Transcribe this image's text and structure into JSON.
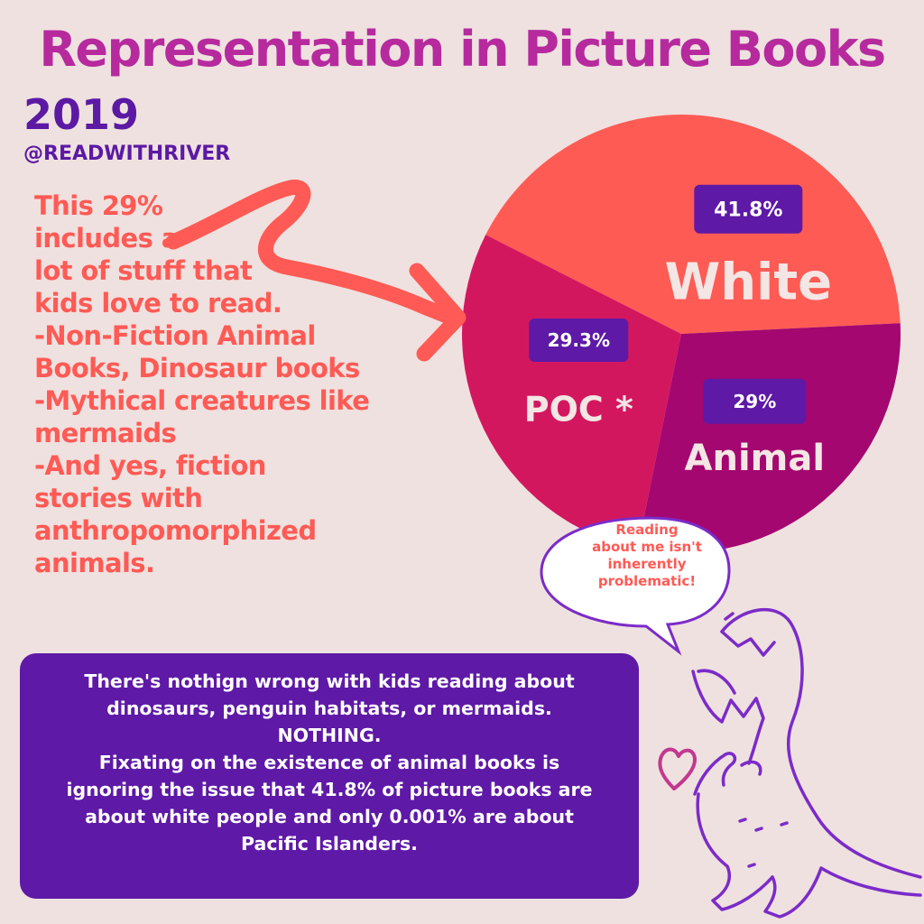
{
  "title": "Representation in Picture Books",
  "year": "2019",
  "handle": "@READWITHRIVER",
  "colors": {
    "background": "#efe1df",
    "title": "#b62a9e",
    "year": "#5b19a4",
    "note_text": "#ff5a55",
    "callout_bg": "#5e19a6",
    "label_box": "#5e19a6",
    "dino": "#7b2bc9",
    "heart": "#c2388f"
  },
  "note_lines": [
    "This 29%",
    "includes a",
    "lot of stuff that",
    "kids love to read.",
    "-Non-Fiction Animal",
    "Books, Dinosaur books",
    "-Mythical creatures like",
    "mermaids",
    "-And yes, fiction",
    "stories with",
    "anthropomorphized",
    "animals."
  ],
  "callout_lines": [
    "There's nothign wrong with kids reading about",
    "dinosaurs, penguin habitats, or mermaids.",
    "NOTHING.",
    "Fixating on the existence of animal books is",
    "ignoring the issue that 41.8% of picture books are",
    "about white people and only 0.001% are about",
    "Pacific Islanders."
  ],
  "speech_lines": [
    "Reading",
    "about me isn't",
    "inherently",
    "problematic!"
  ],
  "icons": {
    "arrow": "squiggle-arrow-icon",
    "dinosaur": "dinosaur-icon",
    "heart": "heart-icon"
  },
  "chart_data": {
    "type": "pie",
    "slices": [
      {
        "label": "White",
        "value": 41.8,
        "value_label": "41.8%",
        "color": "#fe5b55"
      },
      {
        "label": "POC *",
        "value": 29.3,
        "value_label": "29.3%",
        "color": "#d3175f"
      },
      {
        "label": "Animal",
        "value": 29,
        "value_label": "29%",
        "color": "#a4076f"
      }
    ]
  }
}
